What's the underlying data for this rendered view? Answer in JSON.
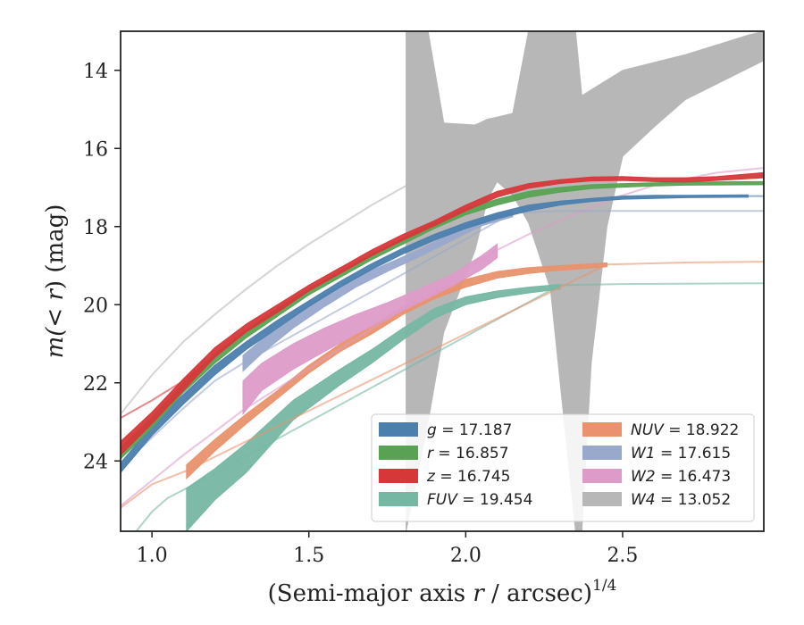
{
  "chart_data": {
    "type": "area",
    "xlabel": "(Semi-major axis r / arcsec)",
    "xlabel_parts": {
      "pre": "(Semi-major axis ",
      "var": "r",
      "post": " / arcsec)",
      "sup": "1/4"
    },
    "ylabel": "m(<r) (mag)",
    "ylabel_parts": {
      "pre": "m(",
      "var": "< r",
      "post": ") (mag)"
    },
    "xlim": [
      0.9,
      2.95
    ],
    "ylim": [
      25.8,
      13.0
    ],
    "y_inverted": true,
    "x_ticks": [
      1.0,
      1.5,
      2.0,
      2.5
    ],
    "x_tick_labels": [
      "1.0",
      "1.5",
      "2.0",
      "2.5"
    ],
    "y_ticks": [
      14,
      16,
      18,
      20,
      22,
      24
    ],
    "y_tick_labels": [
      "14",
      "16",
      "18",
      "20",
      "22",
      "24"
    ],
    "grid": false,
    "legend_position": "lower-right",
    "series": [
      {
        "key": "g",
        "name": "g",
        "value": "17.187",
        "color": "#4c7fae",
        "band": [
          [
            0.9,
            24.05,
            24.3
          ],
          [
            1.0,
            23.1,
            23.35
          ],
          [
            1.1,
            22.3,
            22.55
          ],
          [
            1.2,
            21.55,
            21.8
          ],
          [
            1.3,
            20.95,
            21.15
          ],
          [
            1.4,
            20.4,
            20.6
          ],
          [
            1.5,
            19.9,
            20.05
          ],
          [
            1.6,
            19.4,
            19.55
          ],
          [
            1.7,
            18.95,
            19.1
          ],
          [
            1.8,
            18.55,
            18.7
          ],
          [
            1.9,
            18.2,
            18.35
          ],
          [
            2.0,
            17.9,
            18.05
          ],
          [
            2.1,
            17.65,
            17.8
          ],
          [
            2.2,
            17.45,
            17.6
          ],
          [
            2.3,
            17.35,
            17.45
          ],
          [
            2.4,
            17.28,
            17.36
          ],
          [
            2.5,
            17.22,
            17.3
          ],
          [
            2.6,
            17.2,
            17.28
          ],
          [
            2.7,
            17.2,
            17.26
          ],
          [
            2.9,
            17.19,
            17.25
          ]
        ],
        "line": [
          [
            2.9,
            17.22
          ],
          [
            2.95,
            17.22
          ]
        ]
      },
      {
        "key": "r",
        "name": "r",
        "value": "16.857",
        "color": "#59a253",
        "band": [
          [
            0.9,
            23.65,
            23.95
          ],
          [
            1.0,
            22.9,
            23.15
          ],
          [
            1.1,
            22.0,
            22.25
          ],
          [
            1.2,
            21.25,
            21.5
          ],
          [
            1.3,
            20.65,
            20.85
          ],
          [
            1.4,
            20.1,
            20.3
          ],
          [
            1.5,
            19.6,
            19.75
          ],
          [
            1.6,
            19.15,
            19.3
          ],
          [
            1.7,
            18.7,
            18.85
          ],
          [
            1.8,
            18.3,
            18.45
          ],
          [
            1.9,
            17.9,
            18.05
          ],
          [
            2.0,
            17.55,
            17.7
          ],
          [
            2.1,
            17.3,
            17.45
          ],
          [
            2.2,
            17.1,
            17.25
          ],
          [
            2.3,
            17.0,
            17.12
          ],
          [
            2.4,
            16.93,
            17.03
          ],
          [
            2.5,
            16.9,
            16.99
          ],
          [
            2.6,
            16.88,
            16.96
          ],
          [
            2.7,
            16.86,
            16.94
          ],
          [
            2.95,
            16.85,
            16.93
          ]
        ]
      },
      {
        "key": "z",
        "name": "z",
        "value": "16.745",
        "color": "#d6383a",
        "band": [
          [
            0.9,
            23.5,
            23.85
          ],
          [
            1.0,
            22.75,
            23.05
          ],
          [
            1.1,
            21.9,
            22.2
          ],
          [
            1.2,
            21.1,
            21.35
          ],
          [
            1.3,
            20.5,
            20.7
          ],
          [
            1.4,
            20.0,
            20.2
          ],
          [
            1.5,
            19.5,
            19.65
          ],
          [
            1.6,
            19.05,
            19.2
          ],
          [
            1.7,
            18.6,
            18.75
          ],
          [
            1.8,
            18.2,
            18.35
          ],
          [
            1.9,
            17.85,
            17.98
          ],
          [
            2.0,
            17.45,
            17.6
          ],
          [
            2.1,
            17.1,
            17.25
          ],
          [
            2.2,
            16.9,
            17.02
          ],
          [
            2.3,
            16.8,
            16.9
          ],
          [
            2.4,
            16.73,
            16.83
          ],
          [
            2.5,
            16.72,
            16.82
          ],
          [
            2.6,
            16.75,
            16.85
          ],
          [
            2.7,
            16.75,
            16.86
          ],
          [
            2.8,
            16.72,
            16.82
          ],
          [
            2.95,
            16.62,
            16.75
          ]
        ],
        "line": [
          [
            0.9,
            22.9
          ],
          [
            1.0,
            22.45
          ],
          [
            1.1,
            21.95
          ],
          [
            1.2,
            21.35
          ]
        ]
      },
      {
        "key": "FUV",
        "name": "FUV",
        "value": "19.454",
        "color": "#76b7a3",
        "band": [
          [
            1.11,
            24.7,
            25.8
          ],
          [
            1.2,
            24.2,
            25.0
          ],
          [
            1.3,
            23.55,
            24.3
          ],
          [
            1.45,
            22.45,
            22.95
          ],
          [
            1.6,
            21.65,
            22.05
          ],
          [
            1.7,
            21.15,
            21.5
          ],
          [
            1.8,
            20.6,
            20.9
          ],
          [
            1.9,
            20.1,
            20.35
          ],
          [
            2.0,
            19.8,
            20.0
          ],
          [
            2.1,
            19.65,
            19.82
          ],
          [
            2.2,
            19.55,
            19.7
          ],
          [
            2.3,
            19.48,
            19.6
          ]
        ],
        "line": [
          [
            0.95,
            25.8
          ],
          [
            1.0,
            25.3
          ],
          [
            1.05,
            24.95
          ],
          [
            1.11,
            24.7
          ],
          [
            2.3,
            19.5
          ],
          [
            2.5,
            19.47
          ],
          [
            2.95,
            19.45
          ]
        ]
      },
      {
        "key": "NUV",
        "name": "NUV",
        "value": "18.922",
        "color": "#e9926d",
        "band": [
          [
            1.11,
            24.1,
            24.45
          ],
          [
            1.2,
            23.45,
            23.75
          ],
          [
            1.3,
            22.8,
            23.05
          ],
          [
            1.4,
            22.2,
            22.4
          ],
          [
            1.5,
            21.55,
            21.75
          ],
          [
            1.6,
            21.0,
            21.2
          ],
          [
            1.7,
            20.55,
            20.75
          ],
          [
            1.8,
            20.05,
            20.25
          ],
          [
            1.9,
            19.65,
            19.85
          ],
          [
            2.0,
            19.35,
            19.55
          ],
          [
            2.1,
            19.15,
            19.32
          ],
          [
            2.2,
            19.05,
            19.2
          ],
          [
            2.3,
            19.0,
            19.12
          ],
          [
            2.45,
            18.93,
            19.03
          ]
        ],
        "line": [
          [
            0.9,
            25.2
          ],
          [
            1.0,
            24.6
          ],
          [
            1.11,
            24.25
          ],
          [
            2.45,
            18.97
          ],
          [
            2.7,
            18.92
          ],
          [
            2.95,
            18.9
          ]
        ]
      },
      {
        "key": "W1",
        "name": "W1",
        "value": "17.615",
        "color": "#99a9cc",
        "band": [
          [
            1.29,
            21.3,
            21.7
          ],
          [
            1.35,
            20.9,
            21.25
          ],
          [
            1.45,
            20.3,
            20.6
          ],
          [
            1.55,
            19.75,
            20.05
          ],
          [
            1.65,
            19.3,
            19.55
          ],
          [
            1.75,
            18.95,
            19.15
          ],
          [
            1.85,
            18.6,
            18.78
          ],
          [
            1.95,
            18.2,
            18.38
          ],
          [
            2.05,
            17.8,
            17.98
          ],
          [
            2.15,
            17.6,
            17.75
          ]
        ],
        "line": [
          [
            0.9,
            24.15
          ],
          [
            1.0,
            23.4
          ],
          [
            1.1,
            22.65
          ],
          [
            1.2,
            21.95
          ],
          [
            1.29,
            21.5
          ],
          [
            2.15,
            17.65
          ],
          [
            2.3,
            17.6
          ],
          [
            2.95,
            17.6
          ]
        ]
      },
      {
        "key": "W2",
        "name": "W2",
        "value": "16.473",
        "color": "#dd9bc9",
        "band": [
          [
            1.29,
            21.95,
            22.8
          ],
          [
            1.35,
            21.5,
            22.2
          ],
          [
            1.45,
            21.0,
            21.65
          ],
          [
            1.55,
            20.6,
            21.2
          ],
          [
            1.65,
            20.25,
            20.75
          ],
          [
            1.75,
            19.95,
            20.35
          ],
          [
            1.85,
            19.6,
            19.95
          ],
          [
            1.95,
            19.25,
            19.55
          ],
          [
            2.05,
            18.75,
            19.1
          ],
          [
            2.1,
            18.45,
            18.8
          ]
        ],
        "line": [
          [
            0.9,
            25.15
          ],
          [
            1.0,
            24.5
          ],
          [
            1.1,
            23.85
          ],
          [
            1.2,
            23.25
          ],
          [
            1.29,
            22.7
          ],
          [
            2.1,
            18.6
          ],
          [
            2.2,
            18.2
          ],
          [
            2.3,
            17.85
          ],
          [
            2.4,
            17.5
          ],
          [
            2.5,
            17.2
          ],
          [
            2.6,
            16.95
          ],
          [
            2.7,
            16.78
          ],
          [
            2.8,
            16.62
          ],
          [
            2.95,
            16.5
          ]
        ]
      },
      {
        "key": "W4",
        "name": "W4",
        "value": "13.052",
        "color": "#b7b7b7",
        "band": [
          [
            1.81,
            13.0,
            25.8
          ],
          [
            1.88,
            13.0,
            23.0
          ],
          [
            1.93,
            15.35,
            20.7
          ],
          [
            2.03,
            15.4,
            18.6
          ],
          [
            2.07,
            15.25,
            17.3
          ],
          [
            2.1,
            15.2,
            16.85
          ],
          [
            2.15,
            15.1,
            17.2
          ],
          [
            2.2,
            13.0,
            17.9
          ],
          [
            2.27,
            13.0,
            19.6
          ],
          [
            2.35,
            13.0,
            25.8
          ],
          [
            2.37,
            14.65,
            25.8
          ],
          [
            2.4,
            14.5,
            21.5
          ],
          [
            2.45,
            14.25,
            18.0
          ],
          [
            2.5,
            14.0,
            16.2
          ],
          [
            2.6,
            13.8,
            15.45
          ],
          [
            2.7,
            13.6,
            14.75
          ],
          [
            2.8,
            13.35,
            14.35
          ],
          [
            2.9,
            13.1,
            13.95
          ],
          [
            2.95,
            13.0,
            13.75
          ]
        ],
        "line": [
          [
            0.9,
            22.8
          ],
          [
            1.0,
            21.8
          ],
          [
            1.1,
            20.95
          ],
          [
            1.2,
            20.25
          ],
          [
            1.3,
            19.6
          ],
          [
            1.4,
            19.0
          ],
          [
            1.5,
            18.45
          ],
          [
            1.6,
            17.95
          ],
          [
            1.7,
            17.45
          ],
          [
            1.8,
            17.0
          ],
          [
            1.9,
            16.55
          ],
          [
            2.0,
            16.15
          ],
          [
            2.1,
            15.8
          ],
          [
            2.2,
            15.45
          ],
          [
            2.3,
            15.1
          ],
          [
            2.4,
            14.8
          ],
          [
            2.5,
            14.5
          ],
          [
            2.6,
            14.25
          ],
          [
            2.7,
            14.0
          ],
          [
            2.8,
            13.78
          ],
          [
            2.95,
            13.5
          ]
        ]
      }
    ],
    "legend_columns": [
      [
        "g",
        "r",
        "z",
        "FUV"
      ],
      [
        "NUV",
        "W1",
        "W2",
        "W4"
      ]
    ]
  }
}
